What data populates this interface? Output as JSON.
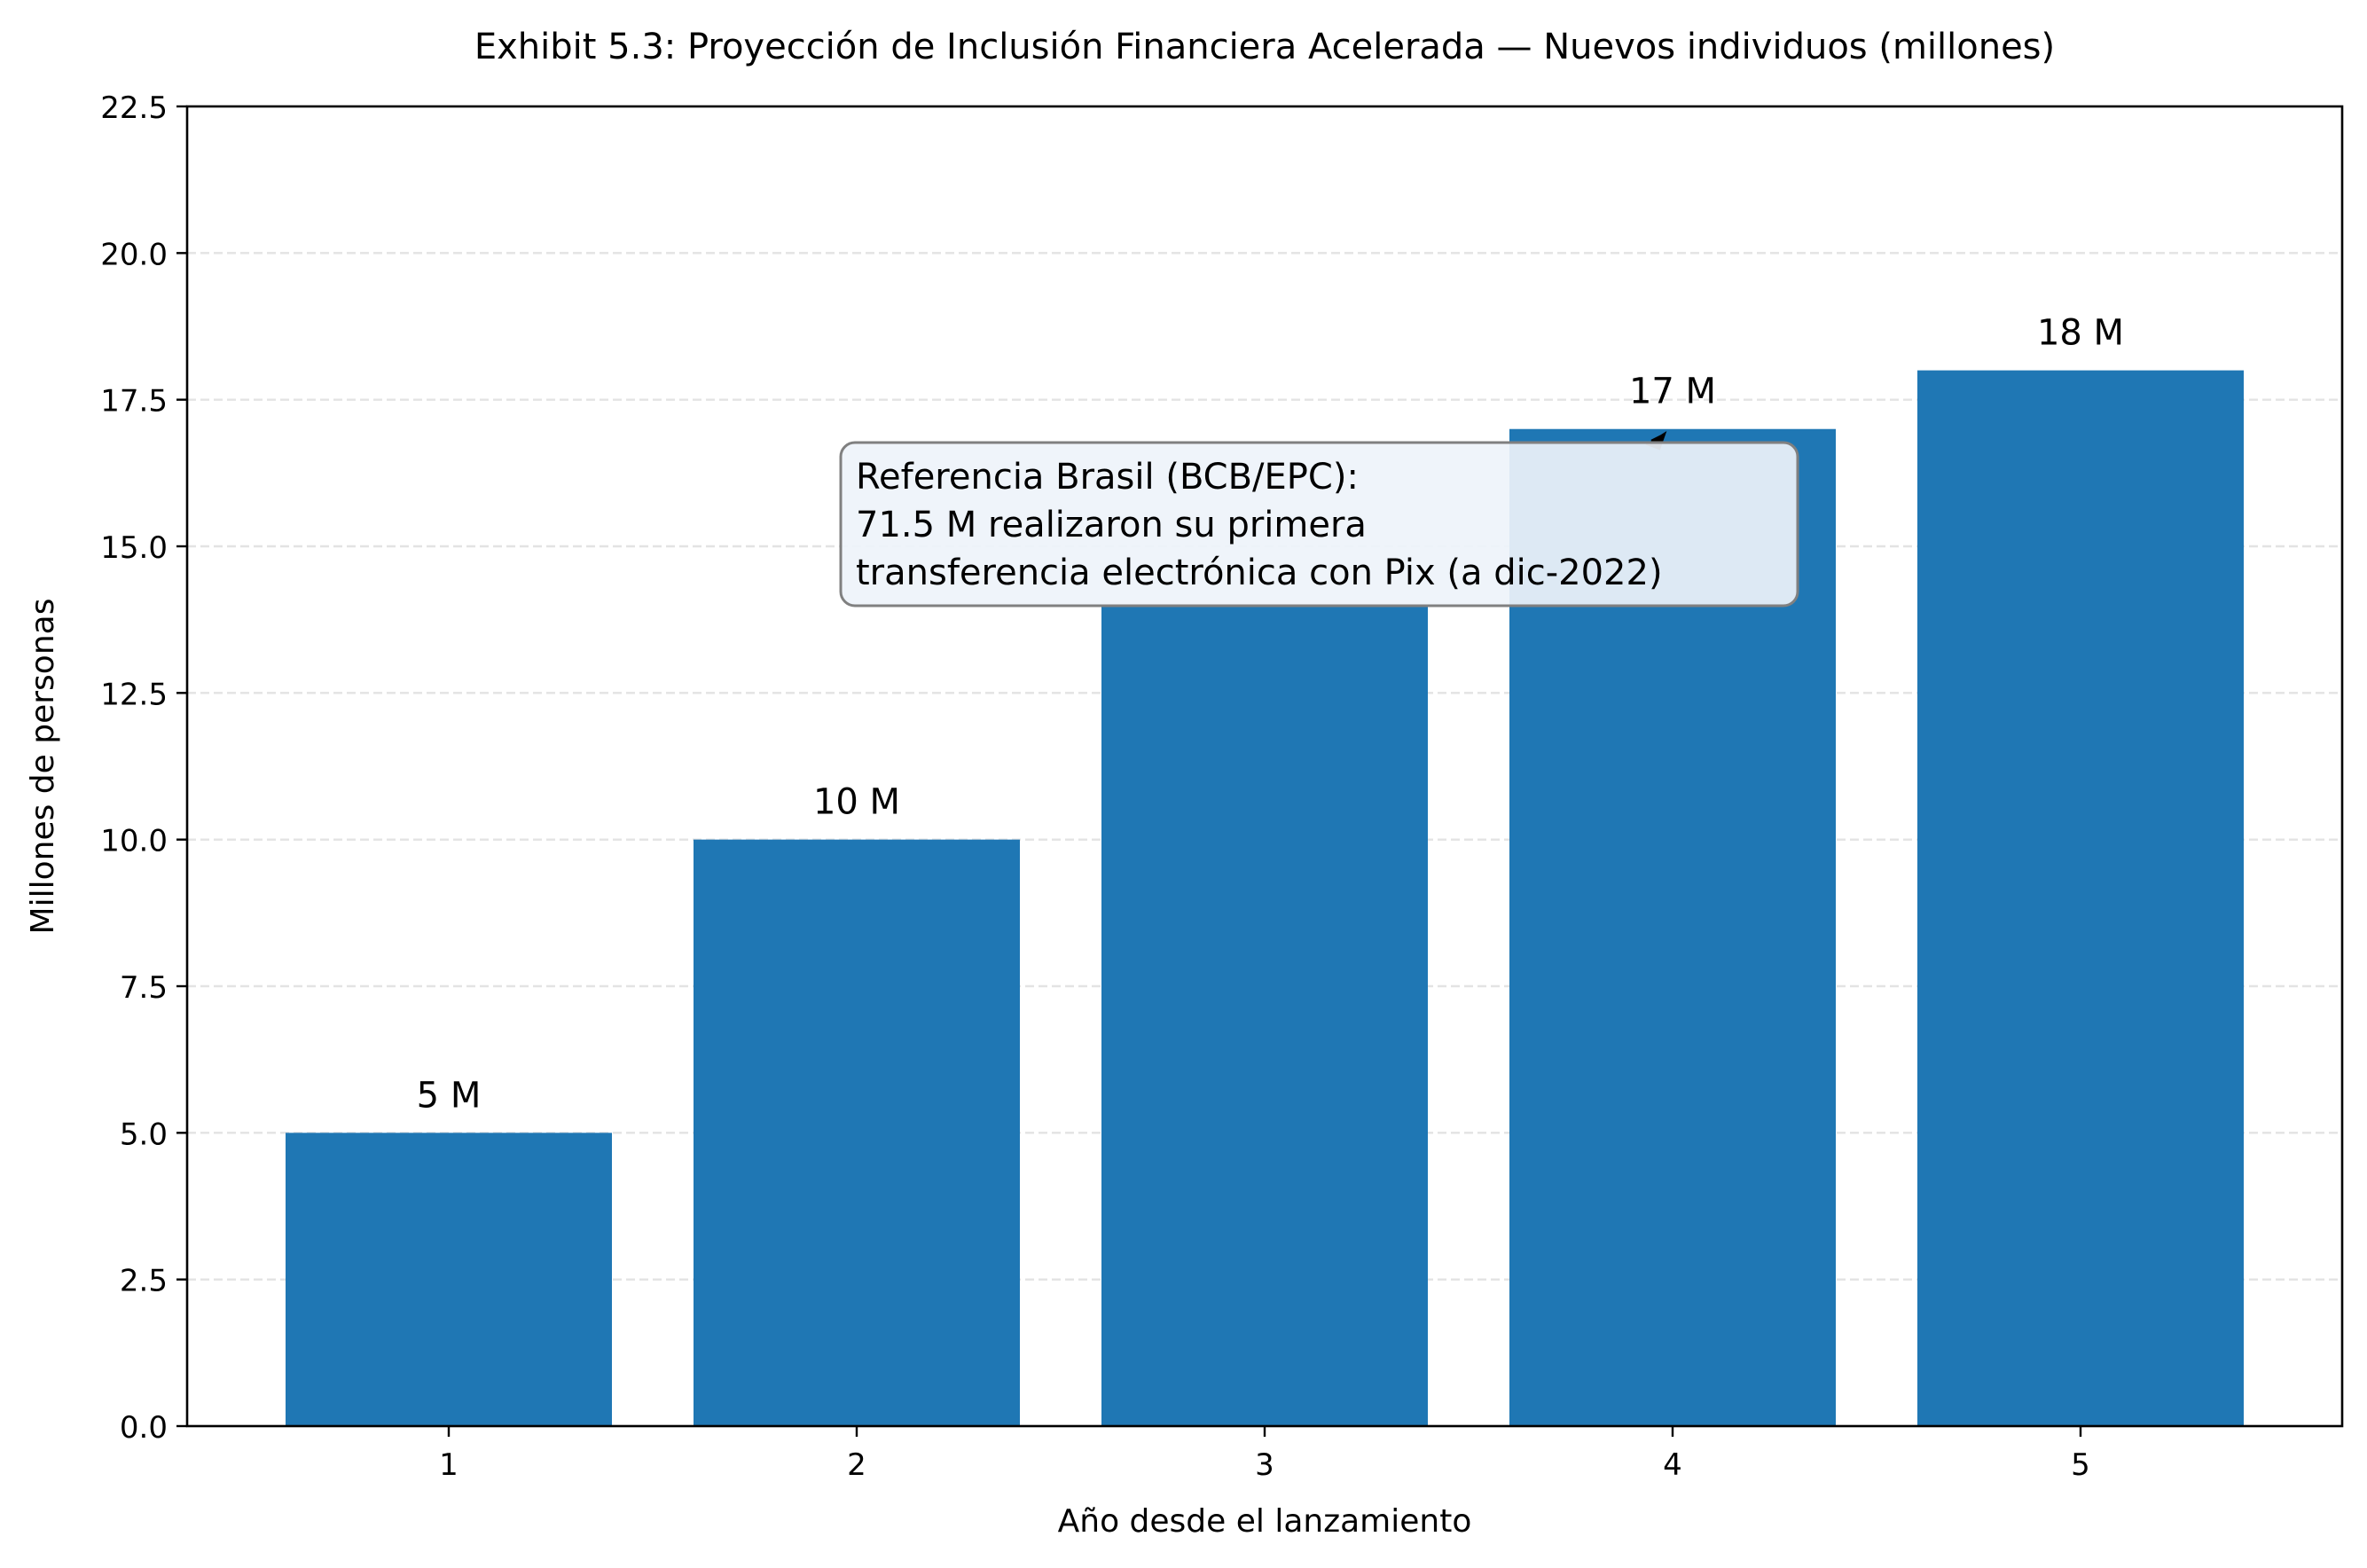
{
  "chart_data": {
    "type": "bar",
    "title": "Exhibit 5.3: Proyección de Inclusión Financiera Acelerada — Nuevos individuos (millones)",
    "xlabel": "Año desde el lanzamiento",
    "ylabel": "Millones de personas",
    "categories": [
      "1",
      "2",
      "3",
      "4",
      "5"
    ],
    "values": [
      5,
      10,
      14,
      17,
      18
    ],
    "data_labels": [
      "5 M",
      "10 M",
      "",
      "17 M",
      "18 M"
    ],
    "ylim": [
      0,
      22.5
    ],
    "yticks": [
      "0.0",
      "2.5",
      "5.0",
      "7.5",
      "10.0",
      "12.5",
      "15.0",
      "17.5",
      "20.0",
      "22.5"
    ],
    "grid": "y, dashed",
    "bar_color": "#1f77b4",
    "annotation": {
      "lines": [
        "Referencia Brasil (BCB/EPC):",
        "71.5 M realizaron su primera",
        "transferencia electrónica con Pix (a dic-2022)"
      ],
      "points_to_category": "4"
    }
  }
}
